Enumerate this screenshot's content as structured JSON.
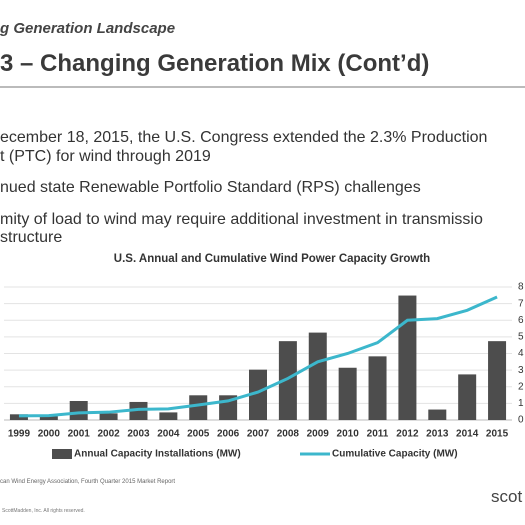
{
  "header": {
    "section": "g Generation Landscape",
    "title": "3 – Changing Generation Mix (Cont’d)"
  },
  "bullets": [
    [
      "ecember 18, 2015, the U.S. Congress extended the 2.3% Production",
      "t (PTC) for wind through 2019"
    ],
    [
      "nued state Renewable Portfolio Standard (RPS) challenges"
    ],
    [
      "mity of load to wind may require additional investment in transmissio",
      "structure"
    ]
  ],
  "chart_data": {
    "type": "bar",
    "title": "U.S. Annual and Cumulative Wind Power Capacity Growth",
    "categories": [
      "1999",
      "2000",
      "2001",
      "2002",
      "2003",
      "2004",
      "2005",
      "2006",
      "2007",
      "2008",
      "2009",
      "2010",
      "2011",
      "2012",
      "2013",
      "2014",
      "2015"
    ],
    "series": [
      {
        "name": "Annual Capacity Installations (MW)",
        "type": "bar",
        "color": "#4d4d4d",
        "values": [
          600,
          400,
          2000,
          700,
          1900,
          800,
          2600,
          2600,
          5300,
          8300,
          9200,
          5500,
          6700,
          13100,
          1100,
          4800,
          8300
        ]
      },
      {
        "name": "Cumulative Capacity (MW)",
        "type": "line",
        "axis": "y2",
        "color": "#3cb7cc",
        "values": [
          0.25,
          0.26,
          0.43,
          0.47,
          0.64,
          0.67,
          0.9,
          1.15,
          1.68,
          2.5,
          3.5,
          4.0,
          4.65,
          6.0,
          6.1,
          6.6,
          7.4
        ]
      }
    ],
    "ylim": [
      0,
      14000
    ],
    "y2lim": [
      0,
      8
    ],
    "y2ticks": [
      0,
      1,
      2,
      3,
      4,
      5,
      6,
      7,
      8
    ],
    "grid": true,
    "legend": "bottom"
  },
  "source": "can Wind Energy Association, Fourth Quarter 2015 Market Report",
  "footer": "ScottMadden, Inc. All rights reserved.",
  "logo": "scot"
}
